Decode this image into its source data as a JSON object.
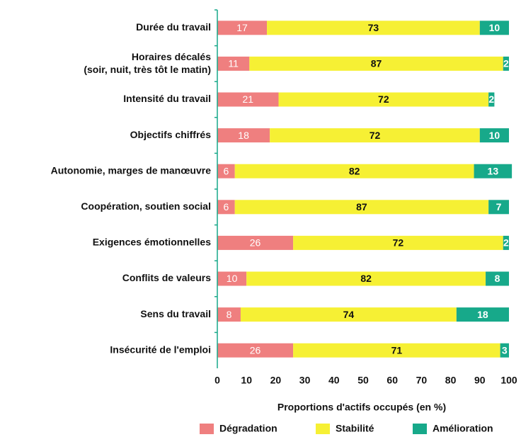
{
  "chart_data": {
    "type": "stacked-barh",
    "categories": [
      "Durée du travail",
      "Horaires décalés\n(soir, nuit, très tôt le matin)",
      "Intensité du travail",
      "Objectifs chiffrés",
      "Autonomie, marges de manœuvre",
      "Coopération, soutien social",
      "Exigences émotionnelles",
      "Conflits de valeurs",
      "Sens du travail",
      "Insécurité de l'emploi"
    ],
    "series": [
      {
        "name": "Dégradation",
        "color": "#ef7f7f",
        "values": [
          17,
          11,
          21,
          18,
          6,
          6,
          26,
          10,
          8,
          26
        ]
      },
      {
        "name": "Stabilité",
        "color": "#f6f034",
        "values": [
          73,
          87,
          72,
          72,
          82,
          87,
          72,
          82,
          74,
          71
        ]
      },
      {
        "name": "Amélioration",
        "color": "#17a98a",
        "values": [
          10,
          2,
          2,
          10,
          13,
          7,
          2,
          8,
          18,
          3
        ]
      }
    ],
    "xlim": [
      0,
      100
    ],
    "xticks": [
      0,
      10,
      20,
      30,
      40,
      50,
      60,
      70,
      80,
      90,
      100
    ],
    "xlabel": "Proportions d'actifs occupés (en %)",
    "legend": "bottom"
  }
}
